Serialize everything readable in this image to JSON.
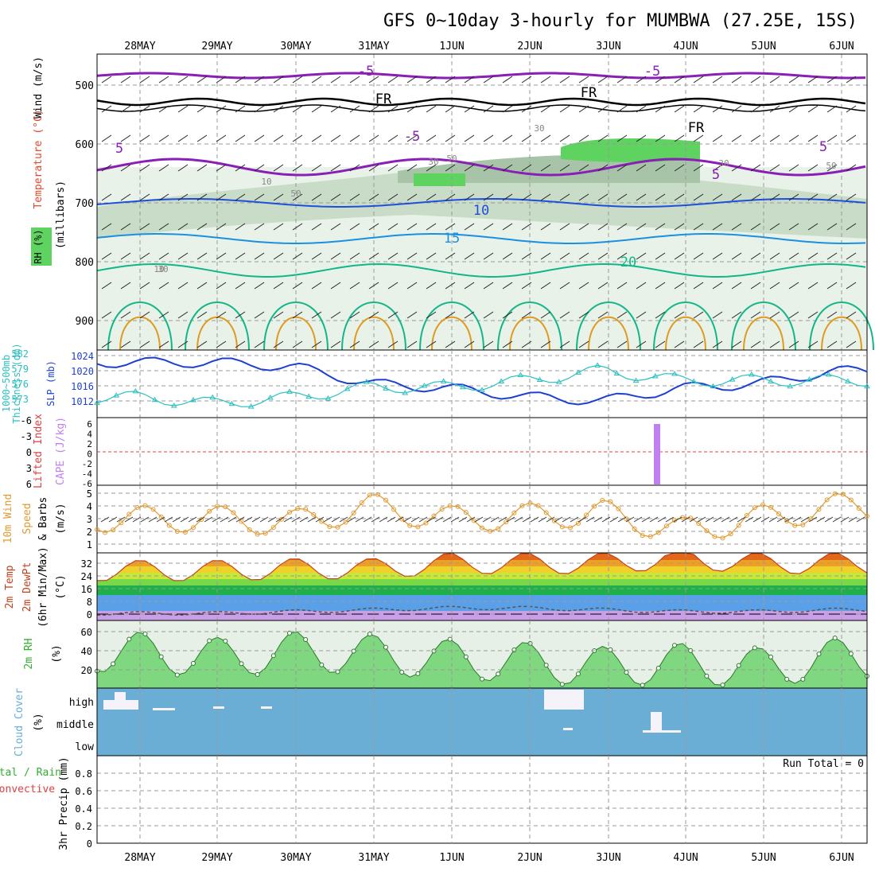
{
  "title": "GFS 0~10day 3-hourly for MUMBWA (27.25E, 15S)",
  "dates": [
    "28MAY",
    "29MAY",
    "30MAY",
    "31MAY",
    "1JUN",
    "2JUN",
    "3JUN",
    "4JUN",
    "5JUN",
    "6JUN"
  ],
  "colors": {
    "grid": "#9a9a9a",
    "temp_purple": "#8a1fb5",
    "temp_blue": "#1f4fd8",
    "temp_lightblue": "#1b8fe0",
    "temp_teal": "#12b68a",
    "temp_orange": "#e09a20",
    "rh_green": "#5fd35f",
    "slp": "#1f3fd0",
    "thickness": "#2cc0c0",
    "cape": "#c080f0",
    "lifted_ref": "#e04040",
    "wind_speed": "#e09a30",
    "temp_max": "#c8401a",
    "dewpt": "#555555",
    "rh2m": "#2fb02f",
    "cloud_bg": "#6aaed6"
  },
  "panels": {
    "upper_air": {
      "ylabel_parts": [
        "Wind (m/s)",
        "Temperature (°C)",
        "(millibars)",
        "RH (%)"
      ],
      "yticks": [
        "500",
        "600",
        "700",
        "800",
        "900"
      ],
      "contour_labels": [
        "-5",
        "-5",
        "FR",
        "FR",
        "FR",
        "5",
        "-5",
        "5",
        "5",
        "10",
        "15",
        "20",
        "10",
        "30",
        "50",
        "30",
        "10",
        "50",
        "30",
        "50",
        "30"
      ]
    },
    "slp": {
      "ylabels": [
        "1000~500mb",
        "Thickness (dm)",
        "SLP (mb)"
      ],
      "left_ticks": [
        "582",
        "579",
        "576",
        "573"
      ],
      "right_ticks": [
        "1024",
        "1020",
        "1016",
        "1012"
      ]
    },
    "cape": {
      "ylabels": [
        "Lifted Index",
        "CAPE (J/kg)"
      ],
      "left_ticks": [
        "-6",
        "-3",
        "0",
        "3",
        "6"
      ],
      "right_ticks": [
        "6",
        "4",
        "2",
        "0",
        "-2",
        "-4",
        "-6"
      ]
    },
    "wind10": {
      "ylabels": [
        "10m Wind",
        "Speed",
        "& Barbs",
        "(m/s)"
      ],
      "yticks": [
        "1",
        "2",
        "3",
        "4",
        "5"
      ]
    },
    "temp2m": {
      "ylabels": [
        "2m Temp",
        "2m DewPt",
        "(6hr Min/Max)",
        "(°C)"
      ],
      "yticks": [
        "0",
        "8",
        "16",
        "24",
        "32"
      ]
    },
    "rh2m": {
      "ylabels": [
        "2m RH",
        "(%)"
      ],
      "yticks": [
        "20",
        "40",
        "60"
      ]
    },
    "cloud": {
      "ylabels": [
        "Cloud Cover",
        "(%)"
      ],
      "levels": [
        "high",
        "middle",
        "low"
      ]
    },
    "precip": {
      "ylabels": [
        "Total / Rain",
        "Convective",
        "3hr Precip (mm)"
      ],
      "yticks": [
        "0",
        "0.2",
        "0.4",
        "0.6",
        "0.8"
      ],
      "run_total": "Run Total = 0"
    }
  },
  "chart_data": [
    {
      "type": "line",
      "name": "SLP / 1000-500mb Thickness",
      "x": [
        "28MAY",
        "29MAY",
        "30MAY",
        "31MAY",
        "1JUN",
        "2JUN",
        "3JUN",
        "4JUN",
        "5JUN",
        "6JUN"
      ],
      "series": [
        {
          "name": "SLP (mb)",
          "values": [
            1022,
            1022,
            1021,
            1017,
            1016,
            1014,
            1013,
            1016,
            1017,
            1020
          ]
        },
        {
          "name": "1000~500mb Thickness (dm)",
          "values": [
            575.5,
            574.5,
            575.5,
            577,
            577,
            578,
            579.5,
            578,
            578,
            578
          ]
        }
      ],
      "ylim_left": [
        573,
        582
      ],
      "ylim_right": [
        1010,
        1024
      ]
    },
    {
      "type": "bar",
      "name": "CAPE",
      "x": [
        "3JUN 15Z"
      ],
      "values": [
        6
      ],
      "ylabel": "CAPE (J/kg)"
    },
    {
      "type": "line",
      "name": "10m Wind Speed",
      "x": [
        "28MAY",
        "29MAY",
        "30MAY",
        "31MAY",
        "1JUN",
        "2JUN",
        "3JUN",
        "4JUN",
        "5JUN",
        "6JUN"
      ],
      "values": [
        2.5,
        2.5,
        2.2,
        3.5,
        2.5,
        2.7,
        3.0,
        1.5,
        2.5,
        3.5
      ],
      "ylim": [
        0,
        5
      ]
    },
    {
      "type": "area",
      "name": "2m Temp",
      "x": [
        "28MAY",
        "29MAY",
        "30MAY",
        "31MAY",
        "1JUN",
        "2JUN",
        "3JUN",
        "4JUN",
        "5JUN",
        "6JUN"
      ],
      "series": [
        {
          "name": "2m Temp max",
          "values": [
            26,
            26,
            27,
            27,
            30,
            30,
            30,
            33,
            30,
            30
          ]
        },
        {
          "name": "2m Temp min",
          "values": [
            13,
            12,
            12,
            14,
            15,
            15,
            15,
            14,
            14,
            16
          ]
        },
        {
          "name": "2m DewPt",
          "values": [
            2,
            2,
            3,
            4,
            5,
            5,
            4,
            3,
            3,
            4
          ]
        }
      ],
      "ylim": [
        -2,
        36
      ]
    },
    {
      "type": "area",
      "name": "2m RH",
      "x": [
        "28MAY",
        "29MAY",
        "30MAY",
        "31MAY",
        "1JUN",
        "2JUN",
        "3JUN",
        "4JUN",
        "5JUN",
        "6JUN"
      ],
      "series": [
        {
          "name": "2m RH max",
          "values": [
            66,
            55,
            66,
            60,
            50,
            46,
            42,
            46,
            40,
            48
          ]
        },
        {
          "name": "2m RH min",
          "values": [
            18,
            19,
            19,
            20,
            21,
            20,
            16,
            18,
            16,
            25
          ]
        }
      ],
      "ylim": [
        10,
        70
      ]
    },
    {
      "type": "bar",
      "name": "3hr Precip",
      "x": [
        "28MAY",
        "29MAY",
        "30MAY",
        "31MAY",
        "1JUN",
        "2JUN",
        "3JUN",
        "4JUN",
        "5JUN",
        "6JUN"
      ],
      "values": [
        0,
        0,
        0,
        0,
        0,
        0,
        0,
        0,
        0,
        0
      ],
      "ylim": [
        0,
        1
      ]
    }
  ]
}
